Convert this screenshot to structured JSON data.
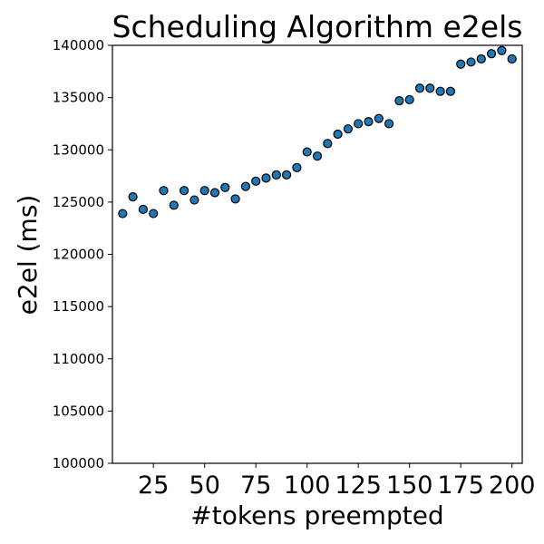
{
  "chart_data": {
    "type": "scatter",
    "title": "Scheduling Algorithm e2els",
    "xlabel": "#tokens preempted",
    "ylabel": "e2el (ms)",
    "xlim": [
      5,
      205
    ],
    "ylim": [
      100000,
      140000
    ],
    "x_ticks": [
      25,
      50,
      75,
      100,
      125,
      150,
      175,
      200
    ],
    "x_tick_labels": [
      "25",
      "50",
      "75",
      "100",
      "125",
      "150",
      "175",
      "200"
    ],
    "y_ticks": [
      100000,
      105000,
      110000,
      115000,
      120000,
      125000,
      130000,
      135000,
      140000
    ],
    "y_tick_labels": [
      "100000",
      "105000",
      "110000",
      "115000",
      "120000",
      "125000",
      "130000",
      "135000",
      "140000"
    ],
    "grid": false,
    "marker_color": "#1f77b4",
    "marker_edge": "#000000",
    "series": [
      {
        "x": [
          10,
          15,
          20,
          25,
          30,
          35,
          40,
          45,
          50,
          55,
          60,
          65,
          70,
          75,
          80,
          85,
          90,
          95,
          100,
          105,
          110,
          115,
          120,
          125,
          130,
          135,
          140,
          145,
          150,
          155,
          160,
          165,
          170,
          175,
          180,
          185,
          190,
          195,
          200
        ],
        "y": [
          123900,
          125500,
          124300,
          123900,
          126100,
          124700,
          126100,
          125200,
          126100,
          125900,
          126400,
          125300,
          126500,
          127000,
          127300,
          127600,
          127600,
          128300,
          129800,
          129400,
          130600,
          131500,
          132000,
          132500,
          132700,
          133000,
          132500,
          134700,
          134800,
          135900,
          135900,
          135600,
          135600,
          138200,
          138400,
          138700,
          139200,
          139500,
          138700
        ]
      }
    ]
  }
}
